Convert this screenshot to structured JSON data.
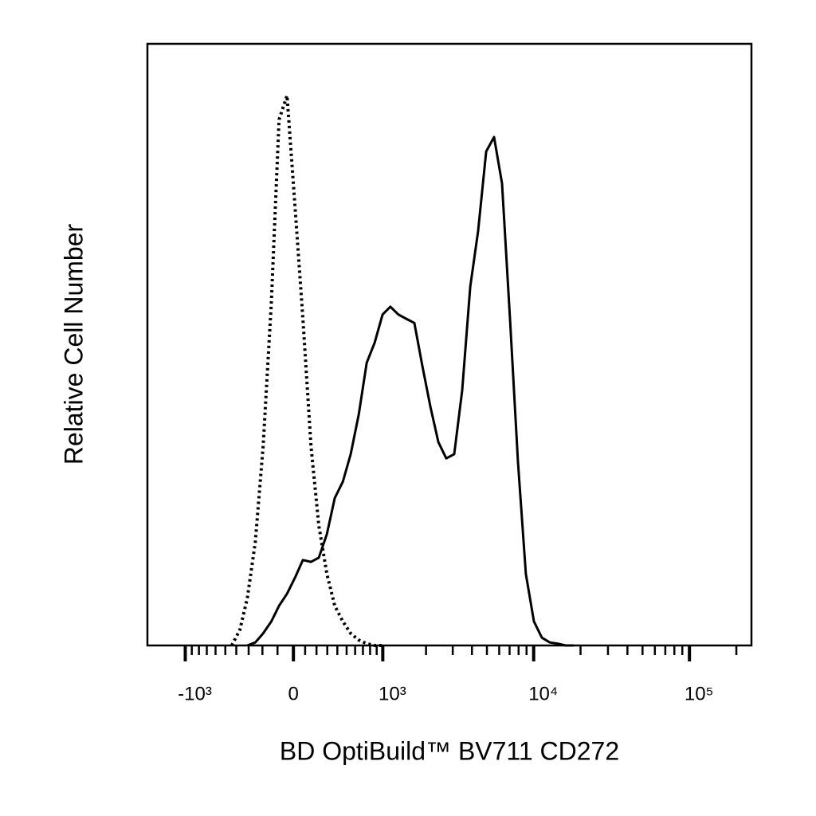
{
  "chart_data": {
    "type": "line",
    "x_label": "BD OptiBuild™ BV711 CD272",
    "y_label": "Relative Cell Number",
    "x_scale": "biexponential",
    "x": [
      -440,
      -370,
      -310,
      -250,
      -195,
      -140,
      -90,
      -40,
      14,
      81,
      151,
      221,
      296,
      374,
      458,
      547,
      645,
      752,
      868,
      997,
      1137,
      1294,
      1466,
      1670,
      1891,
      2138,
      2413,
      2722,
      3067,
      3458,
      3898,
      4387,
      4946,
      5560,
      6256,
      7044,
      7924,
      8913,
      10034,
      11290,
      12690,
      14280,
      16070,
      18080
    ],
    "series": [
      {
        "color": "#000000",
        "line_style": "dotted",
        "values": [
          0,
          2.6,
          7.9,
          17.2,
          33.1,
          57,
          87.4,
          91.4,
          72.8,
          54.3,
          33.1,
          19.9,
          11.9,
          6.6,
          4,
          2,
          0.9,
          0.3,
          0,
          0,
          null,
          null,
          null,
          null,
          null,
          null,
          null,
          null,
          null,
          null,
          null,
          null,
          null,
          null,
          null,
          null,
          null,
          null,
          null,
          null,
          null,
          null,
          null,
          null
        ]
      },
      {
        "color": "#000000",
        "line_style": "solid",
        "values": [
          null,
          null,
          0,
          0.5,
          2,
          4,
          6.6,
          8.6,
          11.3,
          14.2,
          13.9,
          14.6,
          18.5,
          24.5,
          27.2,
          31.8,
          38.4,
          47,
          50.3,
          55,
          56.3,
          55,
          54.3,
          53.6,
          46.4,
          39.7,
          33.8,
          31.1,
          31.8,
          42.4,
          59.6,
          68.9,
          82.1,
          84.5,
          76.8,
          54.3,
          30.5,
          11.9,
          4,
          1.3,
          0.5,
          0.3,
          0,
          0
        ]
      }
    ],
    "xlim": [
      -1800,
      250000
    ],
    "ylim": [
      0,
      100
    ],
    "xticks": [
      {
        "value": -1000,
        "label": "-10³"
      },
      0,
      {
        "value": 1000,
        "label": "10³"
      },
      {
        "value": 10000,
        "label": "10⁴"
      },
      {
        "value": 100000,
        "label": "10⁵"
      }
    ],
    "xminorticks": [
      -900,
      -800,
      -700,
      -600,
      -500,
      -400,
      -300,
      -200,
      -100,
      100,
      200,
      300,
      400,
      500,
      600,
      700,
      800,
      900,
      2000,
      3000,
      4000,
      5000,
      6000,
      7000,
      8000,
      9000,
      20000,
      30000,
      40000,
      50000,
      60000,
      70000,
      80000,
      90000,
      200000
    ]
  }
}
